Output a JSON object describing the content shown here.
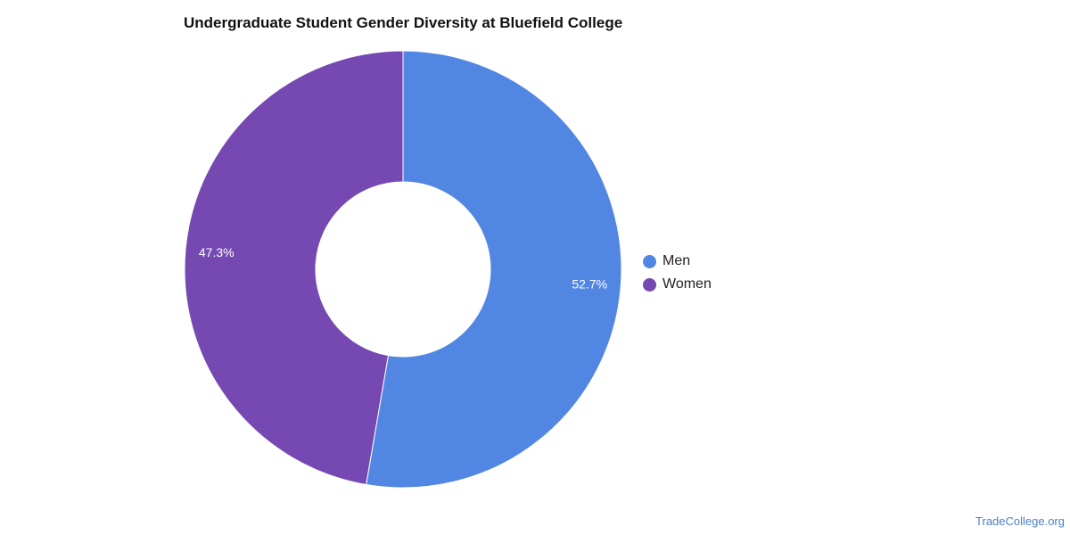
{
  "chart_data": {
    "type": "pie",
    "title": "Undergraduate Student Gender Diversity at Bluefield College",
    "donut": true,
    "categories": [
      "Men",
      "Women"
    ],
    "values": [
      52.7,
      47.3
    ],
    "value_labels": [
      "52.7%",
      "47.3%"
    ],
    "colors": [
      "#5286E3",
      "#7549B1"
    ],
    "legend_position": "right"
  },
  "footer": {
    "source": "TradeCollege.org",
    "source_color": "#4A7FC7"
  }
}
